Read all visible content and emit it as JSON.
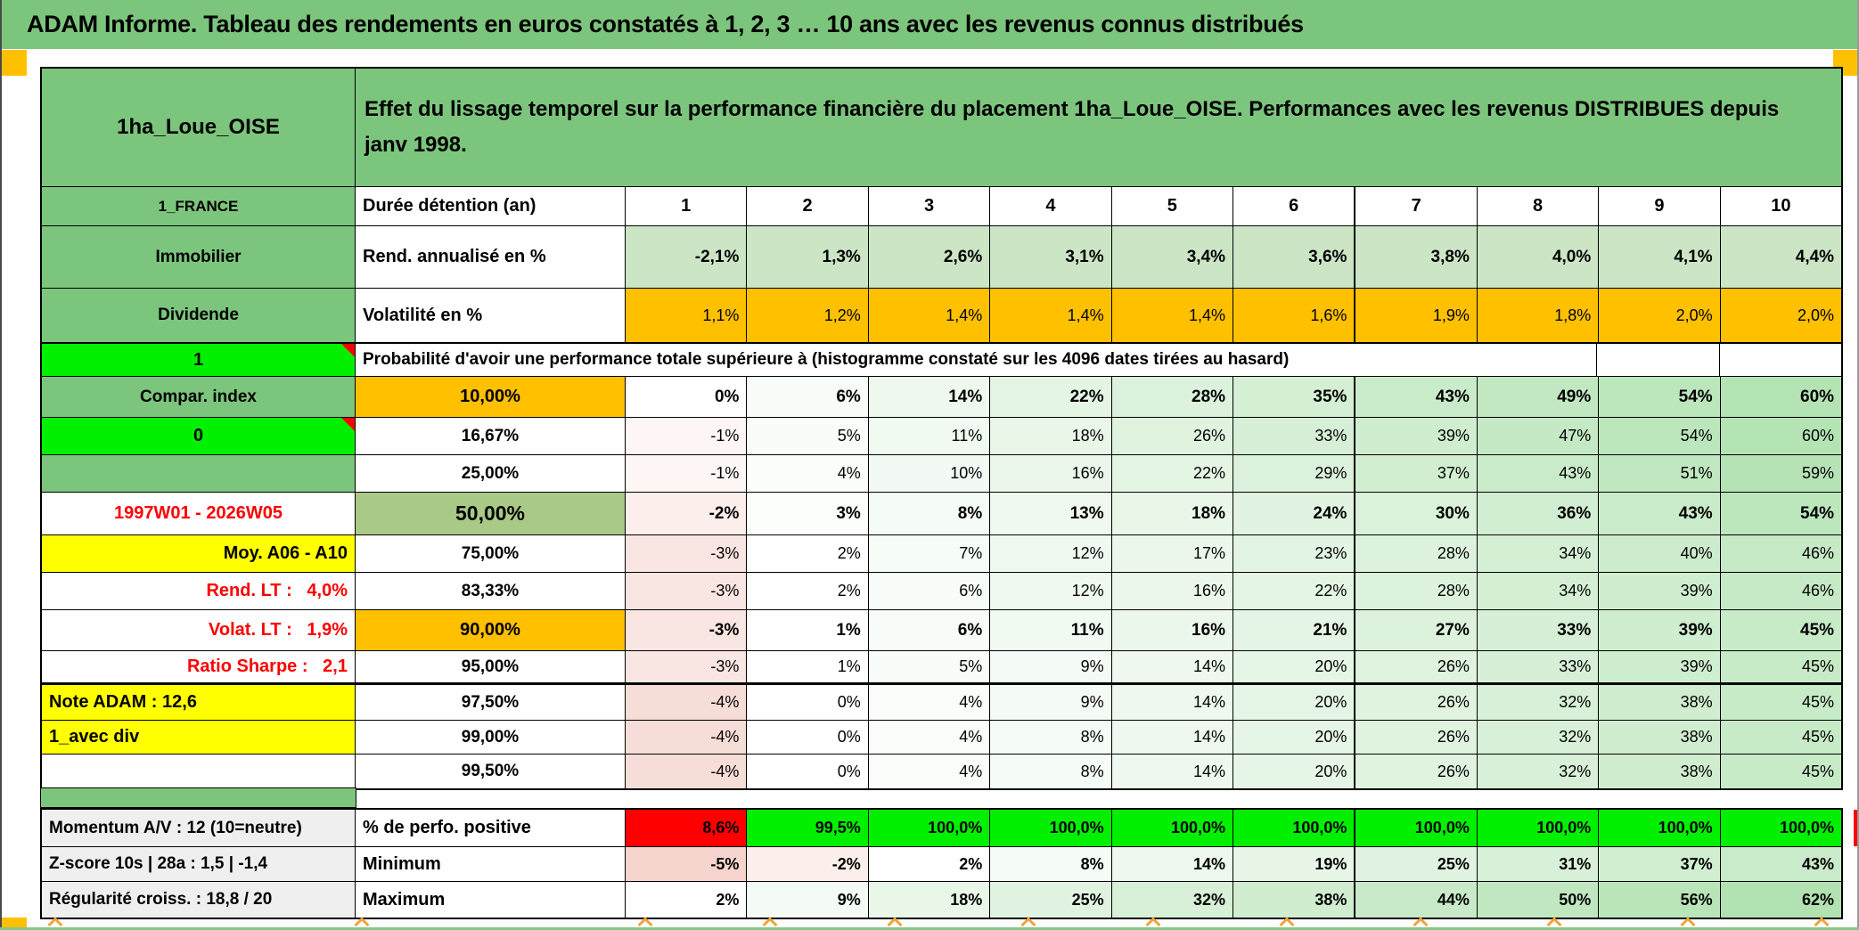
{
  "banner": {
    "title": "ADAM Informe. Tableau des rendements en euros constatés à 1, 2, 3 … 10 ans avec les revenus connus distribués"
  },
  "placement": {
    "name": "1ha_Loue_OISE",
    "description": "Effet du lissage temporel sur la performance financière du placement 1ha_Loue_OISE. Performances avec les revenus DISTRIBUES depuis janv 1998."
  },
  "meta_rows": [
    {
      "label": "1_FRANCE",
      "metric": "Durée détention (an)",
      "values": [
        "1",
        "2",
        "3",
        "4",
        "5",
        "6",
        "7",
        "8",
        "9",
        "10"
      ]
    },
    {
      "label": "Immobilier",
      "metric": "Rend. annualisé en %",
      "values": [
        "-2,1%",
        "1,3%",
        "2,6%",
        "3,1%",
        "3,4%",
        "3,6%",
        "3,8%",
        "4,0%",
        "4,1%",
        "4,4%"
      ]
    },
    {
      "label": "Dividende",
      "metric": "Volatilité en %",
      "values": [
        "1,1%",
        "1,2%",
        "1,4%",
        "1,4%",
        "1,4%",
        "1,6%",
        "1,9%",
        "1,8%",
        "2,0%",
        "2,0%"
      ]
    }
  ],
  "probability_header": {
    "label": "1",
    "text": "Probabilité d'avoir une performance totale supérieure à (histogramme constaté sur les 4096 dates tirées au hasard)"
  },
  "probability_rows": [
    {
      "label": "Compar. index",
      "label_style": "green",
      "threshold": "10,00%",
      "threshold_style": "orange",
      "bold": true,
      "values": [
        "0%",
        "6%",
        "14%",
        "22%",
        "28%",
        "35%",
        "43%",
        "49%",
        "54%",
        "60%"
      ]
    },
    {
      "label": "0",
      "label_style": "bright",
      "corner": true,
      "threshold": "16,67%",
      "threshold_style": "white",
      "bold": false,
      "values": [
        "-1%",
        "5%",
        "11%",
        "18%",
        "26%",
        "33%",
        "39%",
        "47%",
        "54%",
        "60%"
      ]
    },
    {
      "label": "",
      "label_style": "green",
      "threshold": "25,00%",
      "threshold_style": "white",
      "bold": false,
      "values": [
        "-1%",
        "4%",
        "10%",
        "16%",
        "22%",
        "29%",
        "37%",
        "43%",
        "51%",
        "59%"
      ]
    },
    {
      "label": "1997W01 - 2026W05",
      "label_style": "reddate",
      "threshold": "50,00%",
      "threshold_style": "olive",
      "bold": true,
      "values": [
        "-2%",
        "3%",
        "8%",
        "13%",
        "18%",
        "24%",
        "30%",
        "36%",
        "43%",
        "54%"
      ]
    },
    {
      "label": "Moy. A06 - A10",
      "label_style": "yellow-right",
      "threshold": "75,00%",
      "threshold_style": "white",
      "bold": false,
      "values": [
        "-3%",
        "2%",
        "7%",
        "12%",
        "17%",
        "23%",
        "28%",
        "34%",
        "40%",
        "46%"
      ]
    },
    {
      "label": "Rend. LT :   4,0%",
      "label_style": "red-right",
      "threshold": "83,33%",
      "threshold_style": "white",
      "bold": false,
      "values": [
        "-3%",
        "2%",
        "6%",
        "12%",
        "16%",
        "22%",
        "28%",
        "34%",
        "39%",
        "46%"
      ]
    },
    {
      "label": "Volat. LT :   1,9%",
      "label_style": "red-right",
      "threshold": "90,00%",
      "threshold_style": "orange",
      "bold": true,
      "values": [
        "-3%",
        "1%",
        "6%",
        "11%",
        "16%",
        "21%",
        "27%",
        "33%",
        "39%",
        "45%"
      ]
    },
    {
      "label": "Ratio Sharpe :   2,1",
      "label_style": "red-right",
      "threshold": "95,00%",
      "threshold_style": "white",
      "bold": false,
      "thick_bottom": true,
      "values": [
        "-3%",
        "1%",
        "5%",
        "9%",
        "14%",
        "20%",
        "26%",
        "33%",
        "39%",
        "45%"
      ]
    },
    {
      "label": "Note ADAM : 12,6",
      "label_style": "yellow-left",
      "threshold": "97,50%",
      "threshold_style": "white",
      "bold": false,
      "values": [
        "-4%",
        "0%",
        "4%",
        "9%",
        "14%",
        "20%",
        "26%",
        "32%",
        "38%",
        "45%"
      ]
    },
    {
      "label": "1_avec div",
      "label_style": "yellow-left",
      "threshold": "99,00%",
      "threshold_style": "white",
      "bold": false,
      "values": [
        "-4%",
        "0%",
        "4%",
        "8%",
        "14%",
        "20%",
        "26%",
        "32%",
        "38%",
        "45%"
      ]
    },
    {
      "label": "",
      "label_style": "white",
      "threshold": "99,50%",
      "threshold_style": "white",
      "bold": false,
      "values": [
        "-4%",
        "0%",
        "4%",
        "8%",
        "14%",
        "20%",
        "26%",
        "32%",
        "38%",
        "45%"
      ]
    }
  ],
  "summary_rows": [
    {
      "label": "Momentum A/V : 12 (10=neutre)",
      "metric": "% de perfo. positive",
      "style": "signal",
      "values": [
        "8,6%",
        "99,5%",
        "100,0%",
        "100,0%",
        "100,0%",
        "100,0%",
        "100,0%",
        "100,0%",
        "100,0%",
        "100,0%"
      ]
    },
    {
      "label": "Z-score 10s | 28a : 1,5 | -1,4",
      "metric": "Minimum",
      "style": "gradient",
      "values": [
        "-5%",
        "-2%",
        "2%",
        "8%",
        "14%",
        "19%",
        "25%",
        "31%",
        "37%",
        "43%"
      ]
    },
    {
      "label": "Régularité croiss. : 18,8 / 20",
      "metric": "Maximum",
      "style": "gradient",
      "values": [
        "2%",
        "9%",
        "18%",
        "25%",
        "32%",
        "38%",
        "44%",
        "50%",
        "56%",
        "62%"
      ]
    }
  ],
  "colors": {
    "banner_green": "#7CC57D",
    "light_green_row": "#CBE5C5",
    "orange": "#FFC000",
    "bright_green": "#00F000",
    "yellow": "#FFFF00",
    "olive_green": "#A9C987",
    "red": "#FF0000",
    "gray_label": "#EFEFEF",
    "negative_shade_end": "#F5D4CD",
    "positive_shade_end": "#A8DEA8"
  }
}
